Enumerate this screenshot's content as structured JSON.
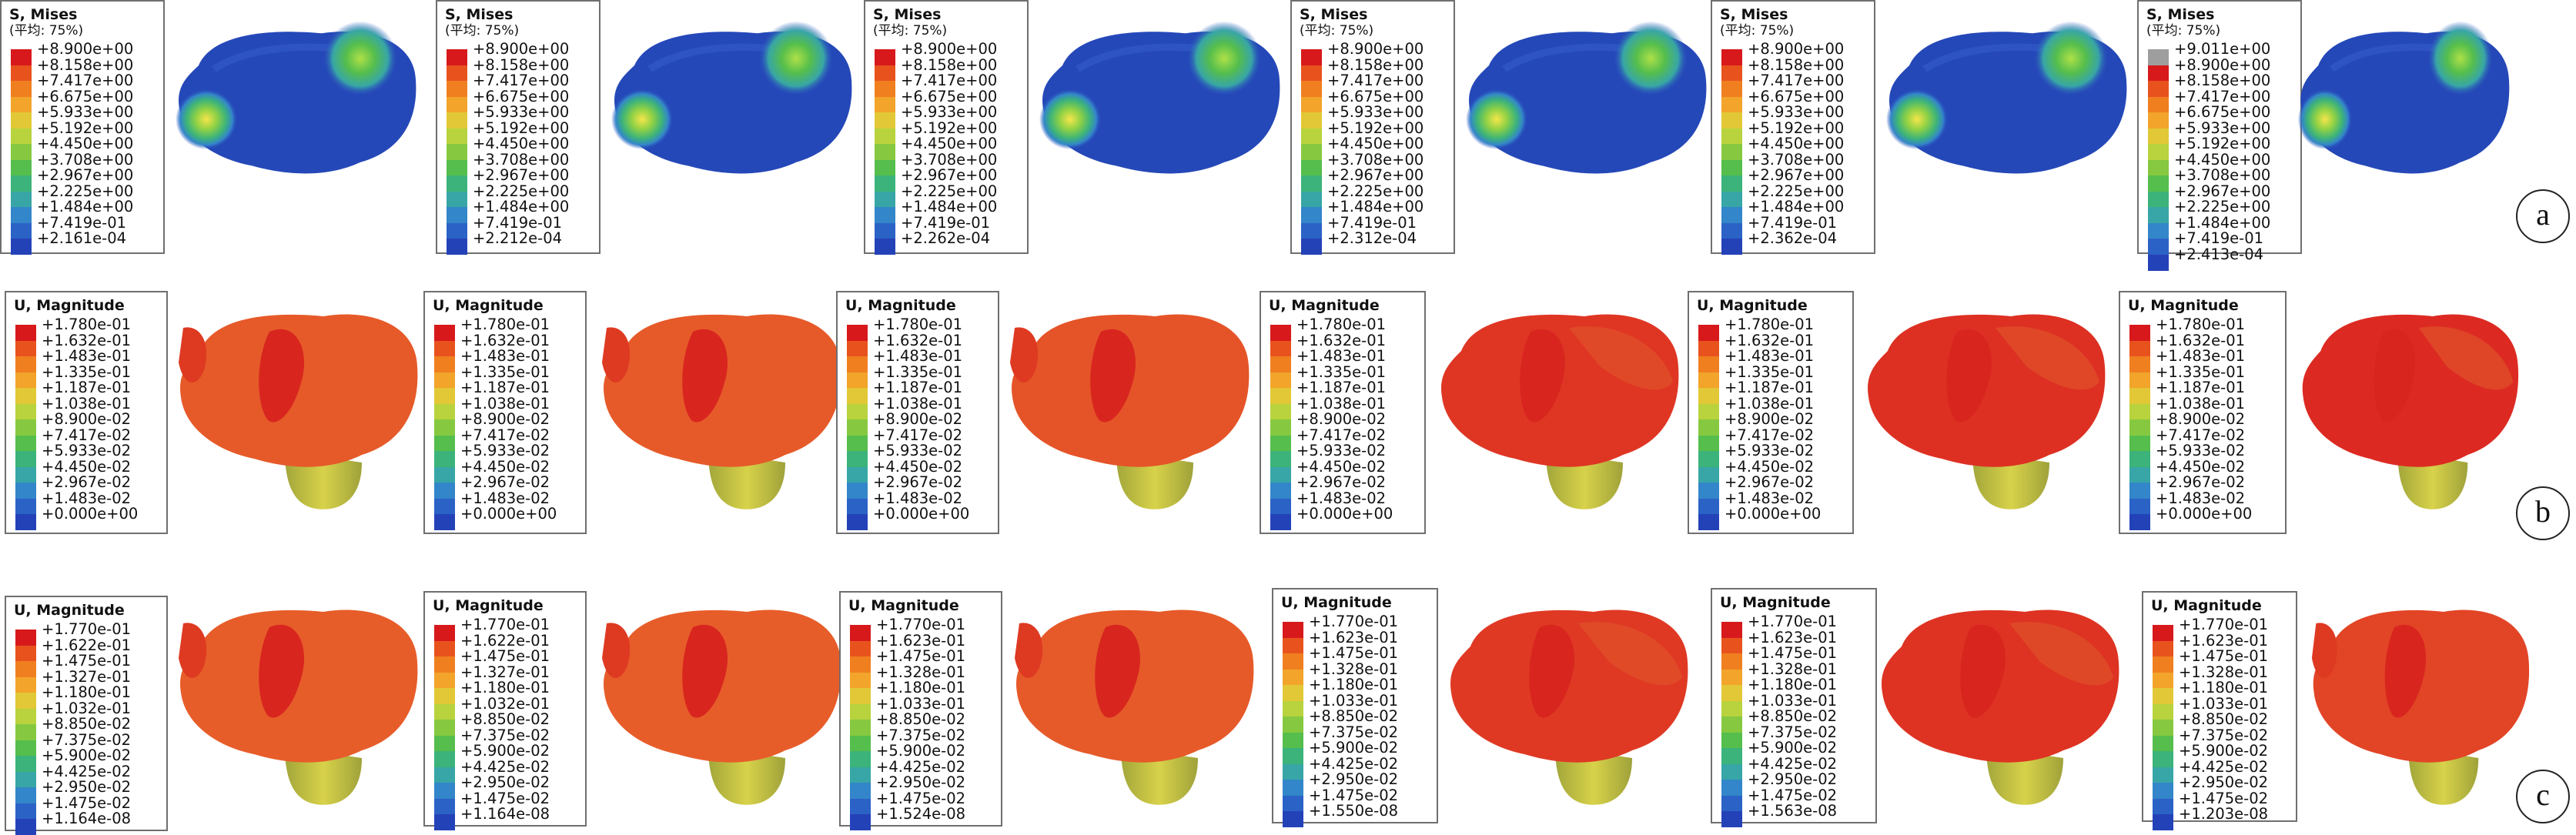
{
  "colorbar": [
    "#d7191c",
    "#e8531d",
    "#f07f20",
    "#f2a42b",
    "#e2c836",
    "#b8d33e",
    "#86c940",
    "#55be4c",
    "#3cb37a",
    "#38a6a6",
    "#3386c9",
    "#2b62c6",
    "#2442b8"
  ],
  "colorbar_a6_top": "#9e9e9e",
  "rows": [
    {
      "tag": "a",
      "title": "S, Mises",
      "subtitle": "(平均: 75%)",
      "panels": [
        {
          "labels": [
            "+8.900e+00",
            "+8.158e+00",
            "+7.417e+00",
            "+6.675e+00",
            "+5.933e+00",
            "+5.192e+00",
            "+4.450e+00",
            "+3.708e+00",
            "+2.967e+00",
            "+2.225e+00",
            "+1.484e+00",
            "+7.419e-01",
            "+2.161e-04"
          ]
        },
        {
          "labels": [
            "+8.900e+00",
            "+8.158e+00",
            "+7.417e+00",
            "+6.675e+00",
            "+5.933e+00",
            "+5.192e+00",
            "+4.450e+00",
            "+3.708e+00",
            "+2.967e+00",
            "+2.225e+00",
            "+1.484e+00",
            "+7.419e-01",
            "+2.212e-04"
          ]
        },
        {
          "labels": [
            "+8.900e+00",
            "+8.158e+00",
            "+7.417e+00",
            "+6.675e+00",
            "+5.933e+00",
            "+5.192e+00",
            "+4.450e+00",
            "+3.708e+00",
            "+2.967e+00",
            "+2.225e+00",
            "+1.484e+00",
            "+7.419e-01",
            "+2.262e-04"
          ]
        },
        {
          "labels": [
            "+8.900e+00",
            "+8.158e+00",
            "+7.417e+00",
            "+6.675e+00",
            "+5.933e+00",
            "+5.192e+00",
            "+4.450e+00",
            "+3.708e+00",
            "+2.967e+00",
            "+2.225e+00",
            "+1.484e+00",
            "+7.419e-01",
            "+2.312e-04"
          ]
        },
        {
          "labels": [
            "+8.900e+00",
            "+8.158e+00",
            "+7.417e+00",
            "+6.675e+00",
            "+5.933e+00",
            "+5.192e+00",
            "+4.450e+00",
            "+3.708e+00",
            "+2.967e+00",
            "+2.225e+00",
            "+1.484e+00",
            "+7.419e-01",
            "+2.362e-04"
          ]
        },
        {
          "labels": [
            "+9.011e+00",
            "+8.900e+00",
            "+8.158e+00",
            "+7.417e+00",
            "+6.675e+00",
            "+5.933e+00",
            "+5.192e+00",
            "+4.450e+00",
            "+3.708e+00",
            "+2.967e+00",
            "+2.225e+00",
            "+1.484e+00",
            "+7.419e-01",
            "+2.413e-04"
          ]
        }
      ]
    },
    {
      "tag": "b",
      "title": "U, Magnitude",
      "subtitle": "",
      "panels": [
        {
          "labels": [
            "+1.780e-01",
            "+1.632e-01",
            "+1.483e-01",
            "+1.335e-01",
            "+1.187e-01",
            "+1.038e-01",
            "+8.900e-02",
            "+7.417e-02",
            "+5.933e-02",
            "+4.450e-02",
            "+2.967e-02",
            "+1.483e-02",
            "+0.000e+00"
          ]
        },
        {
          "labels": [
            "+1.780e-01",
            "+1.632e-01",
            "+1.483e-01",
            "+1.335e-01",
            "+1.187e-01",
            "+1.038e-01",
            "+8.900e-02",
            "+7.417e-02",
            "+5.933e-02",
            "+4.450e-02",
            "+2.967e-02",
            "+1.483e-02",
            "+0.000e+00"
          ]
        },
        {
          "labels": [
            "+1.780e-01",
            "+1.632e-01",
            "+1.483e-01",
            "+1.335e-01",
            "+1.187e-01",
            "+1.038e-01",
            "+8.900e-02",
            "+7.417e-02",
            "+5.933e-02",
            "+4.450e-02",
            "+2.967e-02",
            "+1.483e-02",
            "+0.000e+00"
          ]
        },
        {
          "labels": [
            "+1.780e-01",
            "+1.632e-01",
            "+1.483e-01",
            "+1.335e-01",
            "+1.187e-01",
            "+1.038e-01",
            "+8.900e-02",
            "+7.417e-02",
            "+5.933e-02",
            "+4.450e-02",
            "+2.967e-02",
            "+1.483e-02",
            "+0.000e+00"
          ]
        },
        {
          "labels": [
            "+1.780e-01",
            "+1.632e-01",
            "+1.483e-01",
            "+1.335e-01",
            "+1.187e-01",
            "+1.038e-01",
            "+8.900e-02",
            "+7.417e-02",
            "+5.933e-02",
            "+4.450e-02",
            "+2.967e-02",
            "+1.483e-02",
            "+0.000e+00"
          ]
        },
        {
          "labels": [
            "+1.780e-01",
            "+1.632e-01",
            "+1.483e-01",
            "+1.335e-01",
            "+1.187e-01",
            "+1.038e-01",
            "+8.900e-02",
            "+7.417e-02",
            "+5.933e-02",
            "+4.450e-02",
            "+2.967e-02",
            "+1.483e-02",
            "+0.000e+00"
          ]
        }
      ]
    },
    {
      "tag": "c",
      "title": "U, Magnitude",
      "subtitle": "",
      "panels": [
        {
          "labels": [
            "+1.770e-01",
            "+1.622e-01",
            "+1.475e-01",
            "+1.327e-01",
            "+1.180e-01",
            "+1.032e-01",
            "+8.850e-02",
            "+7.375e-02",
            "+5.900e-02",
            "+4.425e-02",
            "+2.950e-02",
            "+1.475e-02",
            "+1.164e-08"
          ]
        },
        {
          "labels": [
            "+1.770e-01",
            "+1.622e-01",
            "+1.475e-01",
            "+1.327e-01",
            "+1.180e-01",
            "+1.032e-01",
            "+8.850e-02",
            "+7.375e-02",
            "+5.900e-02",
            "+4.425e-02",
            "+2.950e-02",
            "+1.475e-02",
            "+1.164e-08"
          ]
        },
        {
          "labels": [
            "+1.770e-01",
            "+1.623e-01",
            "+1.475e-01",
            "+1.328e-01",
            "+1.180e-01",
            "+1.033e-01",
            "+8.850e-02",
            "+7.375e-02",
            "+5.900e-02",
            "+4.425e-02",
            "+2.950e-02",
            "+1.475e-02",
            "+1.524e-08"
          ]
        },
        {
          "labels": [
            "+1.770e-01",
            "+1.623e-01",
            "+1.475e-01",
            "+1.328e-01",
            "+1.180e-01",
            "+1.033e-01",
            "+8.850e-02",
            "+7.375e-02",
            "+5.900e-02",
            "+4.425e-02",
            "+2.950e-02",
            "+1.475e-02",
            "+1.550e-08"
          ]
        },
        {
          "labels": [
            "+1.770e-01",
            "+1.623e-01",
            "+1.475e-01",
            "+1.328e-01",
            "+1.180e-01",
            "+1.033e-01",
            "+8.850e-02",
            "+7.375e-02",
            "+5.900e-02",
            "+4.425e-02",
            "+2.950e-02",
            "+1.475e-02",
            "+1.563e-08"
          ]
        },
        {
          "labels": [
            "+1.770e-01",
            "+1.623e-01",
            "+1.475e-01",
            "+1.328e-01",
            "+1.180e-01",
            "+1.033e-01",
            "+8.850e-02",
            "+7.375e-02",
            "+5.900e-02",
            "+4.425e-02",
            "+2.950e-02",
            "+1.475e-02",
            "+1.203e-08"
          ]
        }
      ]
    }
  ]
}
